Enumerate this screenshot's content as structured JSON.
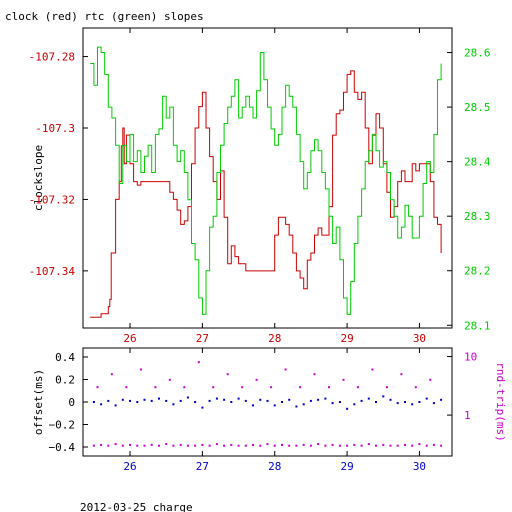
{
  "title": "clock (red) rtc (green) slopes",
  "footer": "2012-03-25 charge",
  "chart_data": [
    {
      "type": "line",
      "ylabel": "clockslope",
      "x_ticks": [
        "26",
        "27",
        "28",
        "29",
        "30"
      ],
      "x_tick_values": [
        26,
        27,
        28,
        29,
        30
      ],
      "xlim": [
        25.35,
        30.45
      ],
      "left_axis": {
        "ticks": [
          "-107.28",
          "-107.3",
          "-107.32",
          "-107.34"
        ],
        "tick_values": [
          -107.28,
          -107.3,
          -107.32,
          -107.34
        ],
        "ylim": [
          -107.356,
          -107.272
        ],
        "color": "#cc0000"
      },
      "right_axis": {
        "ticks": [
          "28.6",
          "28.5",
          "28.4",
          "28.3",
          "28.2",
          "28.1"
        ],
        "tick_values": [
          28.6,
          28.5,
          28.4,
          28.3,
          28.2,
          28.1
        ],
        "ylim": [
          28.095,
          28.645
        ],
        "color": "#00cc00"
      },
      "series": [
        {
          "color": "#cc0000",
          "axis": "left",
          "x": [
            25.45,
            25.6,
            25.7,
            25.72,
            25.74,
            25.8,
            25.85,
            25.88,
            25.9,
            25.92,
            25.95,
            26.0,
            26.05,
            26.1,
            26.15,
            26.2,
            26.3,
            26.4,
            26.5,
            26.55,
            26.6,
            26.65,
            26.7,
            26.75,
            26.8,
            26.85,
            26.9,
            26.95,
            27.0,
            27.05,
            27.1,
            27.15,
            27.2,
            27.25,
            27.3,
            27.35,
            27.4,
            27.45,
            27.5,
            27.55,
            27.6,
            27.7,
            27.8,
            27.9,
            28.0,
            28.05,
            28.1,
            28.15,
            28.2,
            28.25,
            28.3,
            28.35,
            28.4,
            28.45,
            28.5,
            28.55,
            28.6,
            28.65,
            28.7,
            28.75,
            28.8,
            28.85,
            28.9,
            28.95,
            29.0,
            29.05,
            29.1,
            29.15,
            29.2,
            29.25,
            29.3,
            29.35,
            29.4,
            29.45,
            29.5,
            29.55,
            29.6,
            29.65,
            29.7,
            29.75,
            29.8,
            29.85,
            29.9,
            29.95,
            30.0,
            30.05,
            30.1,
            30.15,
            30.2,
            30.25,
            30.3
          ],
          "y": [
            -107.353,
            -107.352,
            -107.35,
            -107.348,
            -107.335,
            -107.32,
            -107.315,
            -107.305,
            -107.3,
            -107.31,
            -107.302,
            -107.31,
            -107.315,
            -107.316,
            -107.315,
            -107.315,
            -107.315,
            -107.315,
            -107.315,
            -107.318,
            -107.32,
            -107.323,
            -107.327,
            -107.326,
            -107.322,
            -107.31,
            -107.3,
            -107.294,
            -107.29,
            -107.3,
            -107.308,
            -107.315,
            -107.32,
            -107.312,
            -107.325,
            -107.338,
            -107.333,
            -107.336,
            -107.338,
            -107.338,
            -107.34,
            -107.34,
            -107.34,
            -107.34,
            -107.33,
            -107.325,
            -107.325,
            -107.327,
            -107.33,
            -107.335,
            -107.34,
            -107.342,
            -107.345,
            -107.337,
            -107.335,
            -107.33,
            -107.328,
            -107.33,
            -107.33,
            -107.322,
            -107.302,
            -107.296,
            -107.295,
            -107.29,
            -107.285,
            -107.284,
            -107.29,
            -107.292,
            -107.29,
            -107.3,
            -107.31,
            -107.302,
            -107.296,
            -107.3,
            -107.31,
            -107.318,
            -107.325,
            -107.322,
            -107.315,
            -107.312,
            -107.315,
            -107.315,
            -107.31,
            -107.312,
            -107.31,
            -107.31,
            -107.31,
            -107.315,
            -107.325,
            -107.327,
            -107.335
          ]
        },
        {
          "color": "#00cc00",
          "axis": "right",
          "x": [
            25.45,
            25.5,
            25.55,
            25.6,
            25.65,
            25.7,
            25.75,
            25.8,
            25.85,
            25.9,
            25.95,
            26.0,
            26.05,
            26.1,
            26.15,
            26.2,
            26.25,
            26.3,
            26.35,
            26.4,
            26.45,
            26.5,
            26.55,
            26.6,
            26.65,
            26.7,
            26.75,
            26.8,
            26.85,
            26.9,
            26.95,
            27.0,
            27.05,
            27.1,
            27.15,
            27.2,
            27.25,
            27.3,
            27.35,
            27.4,
            27.45,
            27.5,
            27.55,
            27.6,
            27.65,
            27.7,
            27.75,
            27.8,
            27.85,
            27.9,
            27.95,
            28.0,
            28.05,
            28.1,
            28.15,
            28.2,
            28.25,
            28.3,
            28.35,
            28.4,
            28.45,
            28.5,
            28.55,
            28.6,
            28.65,
            28.7,
            28.75,
            28.8,
            28.85,
            28.9,
            28.95,
            29.0,
            29.05,
            29.1,
            29.15,
            29.2,
            29.25,
            29.3,
            29.35,
            29.4,
            29.45,
            29.5,
            29.55,
            29.6,
            29.65,
            29.7,
            29.75,
            29.8,
            29.85,
            29.9,
            29.95,
            30.0,
            30.05,
            30.1,
            30.15,
            30.2,
            30.25,
            30.3
          ],
          "y": [
            28.58,
            28.54,
            28.61,
            28.6,
            28.56,
            28.5,
            28.48,
            28.43,
            28.36,
            28.43,
            28.4,
            28.45,
            28.4,
            28.42,
            28.38,
            28.41,
            28.43,
            28.38,
            28.45,
            28.46,
            28.52,
            28.48,
            28.5,
            28.43,
            28.4,
            28.42,
            28.38,
            28.33,
            28.25,
            28.22,
            28.15,
            28.12,
            28.2,
            28.28,
            28.3,
            28.38,
            28.43,
            28.47,
            28.5,
            28.52,
            28.55,
            28.48,
            28.5,
            28.52,
            28.5,
            28.48,
            28.53,
            28.6,
            28.55,
            28.5,
            28.46,
            28.43,
            28.45,
            28.5,
            28.54,
            28.52,
            28.5,
            28.45,
            28.4,
            28.35,
            28.38,
            28.42,
            28.44,
            28.42,
            28.38,
            28.35,
            28.3,
            28.25,
            28.28,
            28.22,
            28.15,
            28.12,
            28.18,
            28.25,
            28.3,
            28.35,
            28.4,
            28.42,
            28.45,
            28.42,
            28.39,
            28.4,
            28.38,
            28.33,
            28.3,
            28.26,
            28.28,
            28.32,
            28.3,
            28.26,
            28.26,
            28.3,
            28.36,
            28.4,
            28.38,
            28.45,
            28.55,
            28.58
          ]
        }
      ]
    },
    {
      "type": "scatter",
      "ylabel_left": "offset(ms)",
      "ylabel_right": "rnd-trip(ms)",
      "x_ticks": [
        "26",
        "27",
        "28",
        "29",
        "30"
      ],
      "x_tick_values": [
        26,
        27,
        28,
        29,
        30
      ],
      "xlim": [
        25.35,
        30.45
      ],
      "left_axis": {
        "ticks": [
          "0.4",
          "0.2",
          "0",
          "−0.2",
          "−0.4"
        ],
        "tick_values": [
          0.4,
          0.2,
          0,
          -0.2,
          -0.4
        ],
        "ylim": [
          -0.48,
          0.48
        ],
        "color": "#000000"
      },
      "right_axis": {
        "ticks": [
          "10",
          "1"
        ],
        "tick_values": [
          10,
          1
        ],
        "log": true,
        "ylim": [
          0.2,
          14
        ],
        "color": "#cc00cc"
      },
      "series": [
        {
          "color": "#0000cc",
          "axis": "left",
          "x": [
            25.5,
            25.6,
            25.7,
            25.8,
            25.9,
            26.0,
            26.1,
            26.2,
            26.3,
            26.4,
            26.5,
            26.6,
            26.7,
            26.8,
            26.9,
            27.0,
            27.1,
            27.2,
            27.3,
            27.4,
            27.5,
            27.6,
            27.7,
            27.8,
            27.9,
            28.0,
            28.1,
            28.2,
            28.3,
            28.4,
            28.5,
            28.6,
            28.7,
            28.8,
            28.9,
            29.0,
            29.1,
            29.2,
            29.3,
            29.4,
            29.5,
            29.6,
            29.7,
            29.8,
            29.9,
            30.0,
            30.1,
            30.2,
            30.3
          ],
          "y": [
            0.0,
            -0.02,
            0.01,
            -0.03,
            0.02,
            0.01,
            0.0,
            0.02,
            0.01,
            0.03,
            0.01,
            -0.02,
            0.01,
            0.04,
            0.0,
            -0.05,
            0.01,
            0.03,
            0.02,
            0.0,
            0.03,
            0.01,
            -0.03,
            0.02,
            0.01,
            -0.03,
            0.0,
            0.02,
            -0.04,
            -0.02,
            0.01,
            0.02,
            0.03,
            -0.01,
            0.0,
            -0.06,
            -0.02,
            0.01,
            0.03,
            0.0,
            0.05,
            0.02,
            -0.01,
            0.0,
            -0.02,
            0.0,
            0.03,
            -0.01,
            0.02
          ]
        },
        {
          "color": "#cc00cc",
          "axis": "right",
          "x": [
            25.5,
            25.6,
            25.7,
            25.8,
            25.9,
            26.0,
            26.1,
            26.2,
            26.3,
            26.4,
            26.5,
            26.6,
            26.7,
            26.8,
            26.9,
            27.0,
            27.1,
            27.2,
            27.3,
            27.4,
            27.5,
            27.6,
            27.7,
            27.8,
            27.9,
            28.0,
            28.1,
            28.2,
            28.3,
            28.4,
            28.5,
            28.6,
            28.7,
            28.8,
            28.9,
            29.0,
            29.1,
            29.2,
            29.3,
            29.4,
            29.5,
            29.6,
            29.7,
            29.8,
            29.9,
            30.0,
            30.1,
            30.2,
            30.3
          ],
          "y": [
            0.3,
            0.31,
            0.3,
            0.32,
            0.3,
            0.31,
            0.3,
            0.3,
            0.31,
            0.3,
            0.32,
            0.3,
            0.31,
            0.3,
            0.3,
            0.31,
            0.3,
            0.32,
            0.3,
            0.31,
            0.3,
            0.3,
            0.31,
            0.3,
            0.32,
            0.3,
            0.31,
            0.3,
            0.3,
            0.31,
            0.3,
            0.32,
            0.3,
            0.31,
            0.3,
            0.3,
            0.31,
            0.3,
            0.32,
            0.3,
            0.31,
            0.3,
            0.3,
            0.31,
            0.3,
            0.32,
            0.3,
            0.31,
            0.3
          ]
        },
        {
          "color": "#cc00cc",
          "axis": "right",
          "x": [
            25.55,
            25.75,
            25.95,
            26.15,
            26.35,
            26.55,
            26.75,
            26.95,
            27.15,
            27.35,
            27.55,
            27.75,
            27.95,
            28.15,
            28.35,
            28.55,
            28.75,
            28.95,
            29.15,
            29.35,
            29.55,
            29.75,
            29.95,
            30.15
          ],
          "y": [
            3.0,
            5.0,
            3.0,
            6.0,
            3.0,
            4.0,
            3.0,
            8.0,
            3.0,
            5.0,
            3.0,
            4.0,
            3.0,
            6.0,
            3.0,
            5.0,
            3.0,
            4.0,
            3.0,
            6.0,
            3.0,
            5.0,
            3.0,
            4.0
          ]
        }
      ]
    }
  ]
}
